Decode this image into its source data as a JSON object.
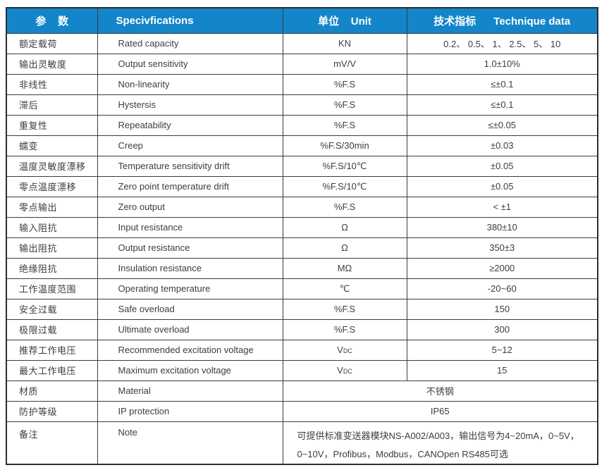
{
  "table": {
    "colors": {
      "header_bg": "#1485c8",
      "header_text": "#ffffff",
      "body_text": "#3d3d3d",
      "border": "#3c3c3c"
    },
    "headers": {
      "param": "参    数",
      "spec": "Specivfications",
      "unit": "单位    Unit",
      "value": "技术指标      Technique data"
    },
    "rows": [
      {
        "param": "额定载荷",
        "spec": "Rated capacity",
        "unit": "KN",
        "value": "0.2、 0.5、 1、 2.5、 5、 10"
      },
      {
        "param": "输出灵敏度",
        "spec": "Output sensitivity",
        "unit": "mV/V",
        "value": "1.0±10%"
      },
      {
        "param": "非线性",
        "spec": "Non-linearity",
        "unit": "%F.S",
        "value": "≤±0.1"
      },
      {
        "param": "滞后",
        "spec": "Hystersis",
        "unit": "%F.S",
        "value": "≤±0.1"
      },
      {
        "param": "重复性",
        "spec": "Repeatability",
        "unit": "%F.S",
        "value": "≤±0.05"
      },
      {
        "param": "蠕变",
        "spec": "Creep",
        "unit": "%F.S/30min",
        "value": "±0.03"
      },
      {
        "param": "温度灵敏度漂移",
        "spec": "Temperature sensitivity drift",
        "unit": "%F.S/10℃",
        "value": "±0.05"
      },
      {
        "param": "零点温度漂移",
        "spec": "Zero point temperature drift",
        "unit": "%F.S/10℃",
        "value": "±0.05"
      },
      {
        "param": "零点输出",
        "spec": "Zero output",
        "unit": "%F.S",
        "value": "< ±1"
      },
      {
        "param": "输入阻抗",
        "spec": "Input resistance",
        "unit": "Ω",
        "value": "380±10"
      },
      {
        "param": "输出阻抗",
        "spec": "Output resistance",
        "unit": "Ω",
        "value": "350±3"
      },
      {
        "param": "绝缘阻抗",
        "spec": "Insulation resistance",
        "unit": "MΩ",
        "value": "≥2000"
      },
      {
        "param": "工作温度范围",
        "spec": "Operating temperature",
        "unit": "℃",
        "value": "-20~60"
      },
      {
        "param": "安全过载",
        "spec": "Safe overload",
        "unit": "%F.S",
        "value": "150"
      },
      {
        "param": "极限过载",
        "spec": "Ultimate overload",
        "unit": "%F.S",
        "value": "300"
      },
      {
        "param": "推荐工作电压",
        "spec": "Recommended excitation voltage",
        "unit": "VDC",
        "value": "5~12"
      },
      {
        "param": "最大工作电压",
        "spec": "Maximum excitation voltage",
        "unit": "VDC",
        "value": "15"
      },
      {
        "param": "材质",
        "spec": "Material",
        "merged": true,
        "value": "不锈钢"
      },
      {
        "param": "防护等级",
        "spec": "IP protection",
        "merged": true,
        "value": "IP65"
      },
      {
        "param": "备注",
        "spec": "Note",
        "merged": true,
        "note": true,
        "value": "可提供标准变送器模块NS-A002/A003，输出信号为4~20mA，0~5V，0~10V，Profibus，Modbus，CANOpen  RS485可选"
      }
    ]
  }
}
